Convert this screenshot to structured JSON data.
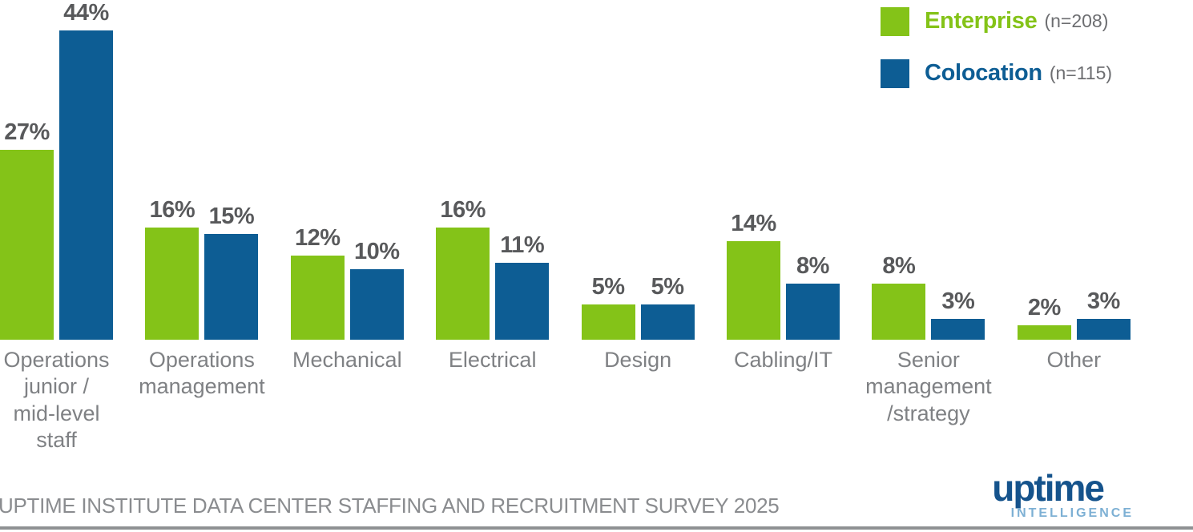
{
  "chart_data": {
    "type": "bar",
    "title": "",
    "xlabel": "",
    "ylabel": "",
    "grid": false,
    "ylim": [
      0,
      48
    ],
    "value_suffix": "%",
    "legend_position": "top-right",
    "categories": [
      "Operations\njunior /\nmid-level\nstaff",
      "Operations\nmanagement",
      "Mechanical",
      "Electrical",
      "Design",
      "Cabling/IT",
      "Senior\nmanagement\n/strategy",
      "Other"
    ],
    "series": [
      {
        "name": "Enterprise",
        "n_label": "(n=208)",
        "color": "#84c318",
        "values": [
          27,
          16,
          12,
          16,
          5,
          14,
          8,
          2
        ]
      },
      {
        "name": "Colocation",
        "n_label": "(n=115)",
        "color": "#0d5d94",
        "values": [
          44,
          15,
          10,
          11,
          5,
          8,
          3,
          3
        ]
      }
    ]
  },
  "legend": {
    "items": [
      {
        "name": "Enterprise",
        "n_label": "(n=208)",
        "color": "#84c318"
      },
      {
        "name": "Colocation",
        "n_label": "(n=115)",
        "color": "#0d5d94"
      }
    ]
  },
  "footer": {
    "source_text": "UPTIME INSTITUTE DATA CENTER STAFFING AND RECRUITMENT SURVEY 2025"
  },
  "logo": {
    "brand": "uptime",
    "sub_brand": "INTELLIGENCE"
  },
  "colors": {
    "enterprise_green": "#84c318",
    "colocation_blue": "#0d5d94",
    "value_label_gray": "#58595b",
    "category_label_gray": "#7f8184",
    "source_gray": "#8a8c8f",
    "rule_gray": "#8f9193",
    "logo_blue": "#15538c",
    "logo_light_blue": "#7db0d4"
  }
}
